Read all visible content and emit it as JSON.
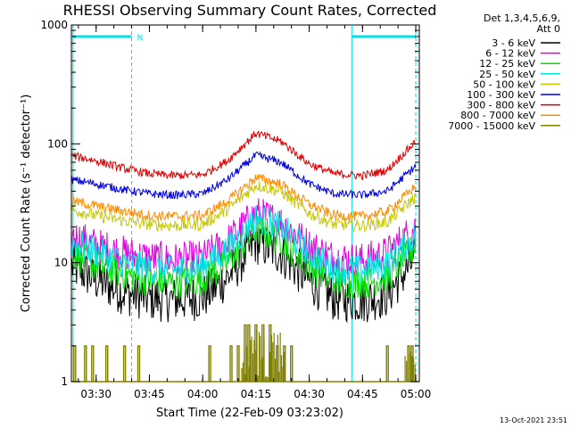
{
  "chart_data": {
    "type": "line",
    "title": "RHESSI Observing Summary Count Rates, Corrected",
    "xlabel": "Start Time (22-Feb-09 03:23:02)",
    "ylabel": "Corrected Count Rate (s⁻¹ detector⁻¹)",
    "x_ticks": [
      "03:30",
      "03:45",
      "04:00",
      "04:15",
      "04:30",
      "04:45",
      "05:00"
    ],
    "y_ticks": [
      "1",
      "10",
      "100",
      "1000"
    ],
    "xlim": [
      "03:23:02",
      "05:01:00"
    ],
    "ylim": [
      1,
      1000
    ],
    "y_scale": "log",
    "grid": false,
    "legend_position": "top-right",
    "legend_header": [
      "Det 1,3,4,5,6,9,",
      "Att 0"
    ],
    "series": [
      {
        "name": "3 - 6 keV",
        "color": "#000000",
        "x": [
          "03:23",
          "03:30",
          "03:38",
          "03:45",
          "03:52",
          "04:00",
          "04:07",
          "04:15",
          "04:22",
          "04:30",
          "04:37",
          "04:45",
          "04:52",
          "05:00"
        ],
        "values": [
          9.5,
          7.2,
          5.6,
          5.0,
          4.9,
          5.1,
          7.5,
          15.0,
          12.0,
          7.0,
          5.0,
          4.8,
          5.4,
          11.0
        ]
      },
      {
        "name": "6 - 12 keV",
        "color": "#e000e0",
        "x": [
          "03:23",
          "03:30",
          "03:38",
          "03:45",
          "03:52",
          "04:00",
          "04:07",
          "04:15",
          "04:22",
          "04:30",
          "04:37",
          "04:45",
          "04:52",
          "05:00"
        ],
        "values": [
          17,
          14,
          12,
          11,
          10.5,
          11,
          15,
          26,
          22,
          14,
          11,
          10.5,
          12,
          20
        ]
      },
      {
        "name": "12 - 25 keV",
        "color": "#00e000",
        "x": [
          "03:23",
          "03:30",
          "03:38",
          "03:45",
          "03:52",
          "04:00",
          "04:07",
          "04:15",
          "04:22",
          "04:30",
          "04:37",
          "04:45",
          "04:52",
          "05:00"
        ],
        "values": [
          12,
          9.5,
          8.0,
          7.0,
          6.8,
          7.2,
          10,
          19,
          16,
          9.5,
          7.0,
          6.8,
          7.5,
          14
        ]
      },
      {
        "name": "25 - 50 keV",
        "color": "#00e0e0",
        "x": [
          "03:23",
          "03:30",
          "03:38",
          "03:45",
          "03:52",
          "04:00",
          "04:07",
          "04:15",
          "04:22",
          "04:30",
          "04:37",
          "04:45",
          "04:52",
          "05:00"
        ],
        "values": [
          15,
          12.5,
          10,
          9.0,
          8.7,
          9.2,
          13,
          24,
          20,
          12,
          9.0,
          8.7,
          9.8,
          17
        ]
      },
      {
        "name": "50 - 100 keV",
        "color": "#c8c800",
        "x": [
          "03:23",
          "03:30",
          "03:38",
          "03:45",
          "03:52",
          "04:00",
          "04:07",
          "04:15",
          "04:22",
          "04:30",
          "04:37",
          "04:45",
          "04:52",
          "05:00"
        ],
        "values": [
          28,
          25,
          22.5,
          21,
          20.5,
          21,
          28,
          45,
          40,
          26,
          21,
          20.5,
          22,
          36
        ]
      },
      {
        "name": "100 - 300 keV",
        "color": "#0000e0",
        "x": [
          "03:23",
          "03:30",
          "03:38",
          "03:45",
          "03:52",
          "04:00",
          "04:07",
          "04:15",
          "04:22",
          "04:30",
          "04:37",
          "04:45",
          "04:52",
          "05:00"
        ],
        "values": [
          50,
          46,
          41,
          38,
          37,
          38,
          50,
          80,
          70,
          46,
          38,
          37,
          40,
          65
        ]
      },
      {
        "name": "300 - 800 keV",
        "color": "#e00000",
        "x": [
          "03:23",
          "03:30",
          "03:38",
          "03:45",
          "03:52",
          "04:00",
          "04:07",
          "04:15",
          "04:22",
          "04:30",
          "04:37",
          "04:45",
          "04:52",
          "05:00"
        ],
        "values": [
          80,
          72,
          62,
          56,
          54,
          55,
          72,
          123,
          105,
          68,
          56,
          54,
          60,
          105
        ]
      },
      {
        "name": "800 - 7000 keV",
        "color": "#ff8c00",
        "x": [
          "03:23",
          "03:30",
          "03:38",
          "03:45",
          "03:52",
          "04:00",
          "04:07",
          "04:15",
          "04:22",
          "04:30",
          "04:37",
          "04:45",
          "04:52",
          "05:00"
        ],
        "values": [
          33,
          30,
          27,
          25,
          24.5,
          25,
          33,
          52,
          46,
          31,
          25,
          24.5,
          27,
          44
        ]
      },
      {
        "name": "7000 - 15000 keV",
        "color": "#808000",
        "x": [
          "03:23",
          "03:30",
          "03:38",
          "03:45",
          "03:52",
          "04:00",
          "04:07",
          "04:15",
          "04:22",
          "04:30",
          "04:37",
          "04:45",
          "04:52",
          "05:00"
        ],
        "values": [
          1.6,
          1.3,
          1,
          1,
          1,
          1,
          1,
          2.8,
          2.6,
          1,
          1,
          1,
          1.1,
          1.7
        ]
      }
    ],
    "spikes_7000_15000": [
      {
        "t": "03:24",
        "v": 2
      },
      {
        "t": "03:27",
        "v": 2
      },
      {
        "t": "03:29",
        "v": 2
      },
      {
        "t": "03:33",
        "v": 2
      },
      {
        "t": "03:38",
        "v": 2
      },
      {
        "t": "03:42",
        "v": 2
      },
      {
        "t": "04:02",
        "v": 2
      },
      {
        "t": "04:08",
        "v": 2
      },
      {
        "t": "04:10",
        "v": 2
      },
      {
        "t": "04:12",
        "v": 3
      },
      {
        "t": "04:13",
        "v": 3
      },
      {
        "t": "04:15",
        "v": 3
      },
      {
        "t": "04:17",
        "v": 3
      },
      {
        "t": "04:19",
        "v": 3
      },
      {
        "t": "04:21",
        "v": 2
      },
      {
        "t": "04:23",
        "v": 2
      },
      {
        "t": "04:25",
        "v": 2
      },
      {
        "t": "04:52",
        "v": 2
      },
      {
        "t": "04:58",
        "v": 2
      },
      {
        "t": "04:59",
        "v": 2
      }
    ],
    "annotations": {
      "top_bars": [
        {
          "start": "03:23:02",
          "end": "03:40",
          "color": "#00e0e0",
          "label": "N"
        },
        {
          "start": "04:42",
          "end": "05:00",
          "color": "#00e0e0",
          "label": ""
        }
      ],
      "vertical_lines": [
        {
          "t": "03:23:30",
          "color": "#00e0e0",
          "style": "solid"
        },
        {
          "t": "03:40",
          "color": "#00e0e0",
          "style": "dashed"
        },
        {
          "t": "04:42",
          "color": "#00e0e0",
          "style": "solid"
        },
        {
          "t": "05:00",
          "color": "#00e0e0",
          "style": "dashed"
        }
      ]
    },
    "footer_timestamp": "13-Oct-2021 23:51"
  }
}
